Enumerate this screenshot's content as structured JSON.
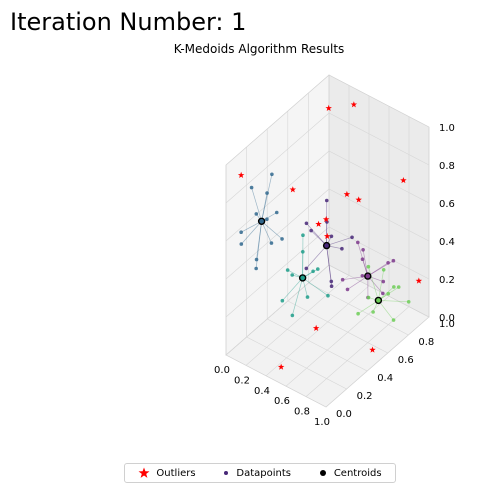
{
  "header": {
    "iteration_label": "Iteration Number: 1"
  },
  "chart_data": {
    "type": "scatter",
    "projection": "3d",
    "title": "K-Medoids Algorithm Results",
    "xlabel": "",
    "ylabel": "",
    "zlabel": "",
    "xlim": [
      0,
      1
    ],
    "ylim": [
      0,
      1
    ],
    "zlim": [
      0,
      1
    ],
    "x_ticks": [
      "0.0",
      "0.2",
      "0.4",
      "0.6",
      "0.8",
      "1.0"
    ],
    "y_ticks": [
      "0.0",
      "0.2",
      "0.4",
      "0.6",
      "0.8",
      "1.0"
    ],
    "z_ticks": [
      "0.0",
      "0.2",
      "0.4",
      "0.6",
      "0.8",
      "1.0"
    ],
    "grid": true,
    "legend_position": "bottom-center",
    "legend": [
      {
        "label": "Outliers",
        "marker": "star",
        "color": "#ff0000"
      },
      {
        "label": "Datapoints",
        "marker": "dot",
        "color": "#482878"
      },
      {
        "label": "Centroids",
        "marker": "circle",
        "color": "#000000"
      }
    ],
    "clusters": [
      {
        "medoid": [
          0.15,
          0.2,
          0.65
        ],
        "color": "#31688e",
        "points": [
          [
            0.05,
            0.1,
            0.55
          ],
          [
            0.2,
            0.1,
            0.75
          ],
          [
            0.1,
            0.3,
            0.6
          ],
          [
            0.25,
            0.25,
            0.7
          ],
          [
            0.05,
            0.2,
            0.8
          ],
          [
            0.2,
            0.35,
            0.5
          ],
          [
            0.1,
            0.05,
            0.65
          ],
          [
            0.3,
            0.15,
            0.6
          ],
          [
            0.15,
            0.3,
            0.85
          ],
          [
            0.05,
            0.35,
            0.7
          ],
          [
            0.25,
            0.05,
            0.5
          ],
          [
            0.12,
            0.18,
            0.45
          ]
        ]
      },
      {
        "medoid": [
          0.8,
          0.2,
          0.7
        ],
        "color": "#482878",
        "points": [
          [
            0.7,
            0.1,
            0.6
          ],
          [
            0.9,
            0.15,
            0.8
          ],
          [
            0.85,
            0.3,
            0.65
          ],
          [
            0.75,
            0.25,
            0.9
          ],
          [
            0.95,
            0.1,
            0.6
          ],
          [
            0.7,
            0.3,
            0.75
          ],
          [
            0.8,
            0.05,
            0.85
          ],
          [
            0.9,
            0.35,
            0.7
          ],
          [
            0.65,
            0.15,
            0.8
          ],
          [
            0.85,
            0.2,
            0.5
          ]
        ]
      },
      {
        "medoid": [
          0.8,
          0.6,
          0.35
        ],
        "color": "#7e3a8c",
        "points": [
          [
            0.7,
            0.5,
            0.3
          ],
          [
            0.9,
            0.7,
            0.4
          ],
          [
            0.75,
            0.65,
            0.2
          ],
          [
            0.85,
            0.5,
            0.5
          ],
          [
            0.95,
            0.6,
            0.3
          ],
          [
            0.65,
            0.7,
            0.4
          ],
          [
            0.8,
            0.75,
            0.25
          ],
          [
            0.9,
            0.45,
            0.45
          ],
          [
            0.7,
            0.6,
            0.5
          ],
          [
            0.85,
            0.8,
            0.35
          ],
          [
            0.6,
            0.55,
            0.3
          ]
        ]
      },
      {
        "medoid": [
          0.2,
          0.55,
          0.2
        ],
        "color": "#1f9e89",
        "points": [
          [
            0.1,
            0.45,
            0.1
          ],
          [
            0.3,
            0.6,
            0.25
          ],
          [
            0.15,
            0.7,
            0.15
          ],
          [
            0.25,
            0.4,
            0.3
          ],
          [
            0.05,
            0.55,
            0.2
          ],
          [
            0.35,
            0.65,
            0.1
          ],
          [
            0.1,
            0.65,
            0.35
          ],
          [
            0.2,
            0.45,
            0.05
          ],
          [
            0.3,
            0.5,
            0.15
          ],
          [
            0.15,
            0.6,
            0.3
          ]
        ]
      },
      {
        "medoid": [
          0.7,
          0.8,
          0.1
        ],
        "color": "#6ece58",
        "points": [
          [
            0.6,
            0.7,
            0.05
          ],
          [
            0.8,
            0.9,
            0.15
          ],
          [
            0.65,
            0.9,
            0.2
          ],
          [
            0.75,
            0.7,
            0.1
          ],
          [
            0.55,
            0.85,
            0.05
          ],
          [
            0.85,
            0.75,
            0.2
          ],
          [
            0.7,
            0.95,
            0.1
          ],
          [
            0.6,
            0.8,
            0.25
          ],
          [
            0.8,
            0.85,
            0.0
          ],
          [
            0.9,
            0.9,
            0.1
          ]
        ]
      }
    ],
    "outliers": [
      [
        0.1,
        0.9,
        0.9
      ],
      [
        0.95,
        0.05,
        0.95
      ],
      [
        0.05,
        0.6,
        0.6
      ],
      [
        0.95,
        0.8,
        0.8
      ],
      [
        0.9,
        0.3,
        0.95
      ],
      [
        0.4,
        0.9,
        0.5
      ],
      [
        0.05,
        0.85,
        0.3
      ],
      [
        0.95,
        0.95,
        0.2
      ],
      [
        0.5,
        0.05,
        0.05
      ],
      [
        0.3,
        0.95,
        0.95
      ],
      [
        0.6,
        0.4,
        0.6
      ],
      [
        0.85,
        0.05,
        0.35
      ],
      [
        0.1,
        0.05,
        0.95
      ],
      [
        0.95,
        0.5,
        0.05
      ]
    ]
  }
}
